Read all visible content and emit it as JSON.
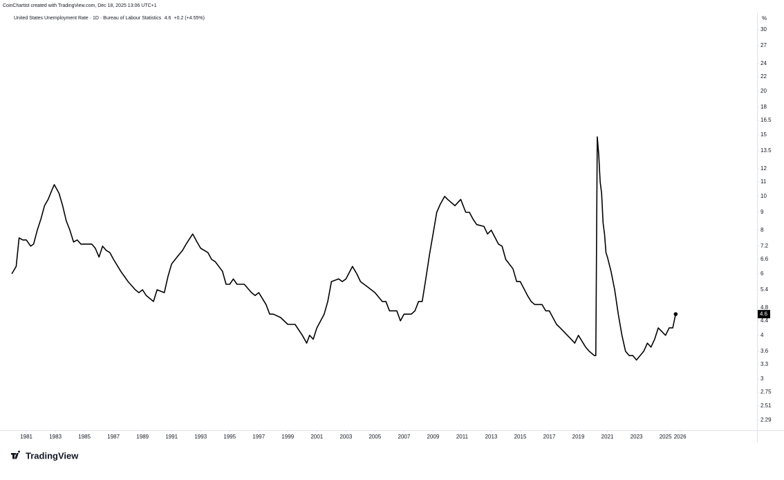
{
  "header": "CoinChartist created with TradingView.com, Dec 18, 2025 13:06 UTC+1",
  "brand": "TradingView",
  "chart_data": {
    "type": "line",
    "y_scale": "log",
    "grid": false,
    "y_unit": "%",
    "change": "+0.2 (+4.55%)",
    "x": [
      1980.0,
      1980.3,
      1980.5,
      1980.75,
      1981.0,
      1981.3,
      1981.5,
      1981.75,
      1982.0,
      1982.25,
      1982.5,
      1982.75,
      1982.92,
      1983.25,
      1983.5,
      1983.75,
      1984.0,
      1984.25,
      1984.5,
      1984.75,
      1985.0,
      1985.5,
      1985.75,
      1986.0,
      1986.25,
      1986.5,
      1986.75,
      1987.0,
      1987.5,
      1987.75,
      1988.0,
      1988.5,
      1988.75,
      1989.0,
      1989.25,
      1989.75,
      1990.0,
      1990.5,
      1990.75,
      1991.0,
      1991.5,
      1991.75,
      1992.0,
      1992.45,
      1992.75,
      1993.0,
      1993.5,
      1993.75,
      1994.0,
      1994.5,
      1994.75,
      1995.0,
      1995.25,
      1995.5,
      1996.0,
      1996.5,
      1996.75,
      1997.0,
      1997.5,
      1997.75,
      1998.0,
      1998.5,
      1999.0,
      1999.5,
      2000.0,
      2000.3,
      2000.5,
      2000.75,
      2001.0,
      2001.5,
      2001.75,
      2002.0,
      2002.5,
      2002.75,
      2003.0,
      2003.45,
      2003.75,
      2004.0,
      2004.5,
      2005.0,
      2005.5,
      2005.75,
      2006.0,
      2006.5,
      2006.75,
      2007.0,
      2007.5,
      2007.75,
      2008.0,
      2008.25,
      2008.5,
      2008.75,
      2009.0,
      2009.25,
      2009.5,
      2009.8,
      2010.0,
      2010.5,
      2010.9,
      2011.25,
      2011.5,
      2011.75,
      2012.0,
      2012.5,
      2012.75,
      2013.0,
      2013.5,
      2013.75,
      2014.0,
      2014.5,
      2014.75,
      2015.0,
      2015.5,
      2015.75,
      2016.0,
      2016.5,
      2016.75,
      2017.0,
      2017.5,
      2017.75,
      2018.0,
      2018.5,
      2018.75,
      2019.0,
      2019.5,
      2019.75,
      2020.1,
      2020.2,
      2020.3,
      2020.4,
      2020.5,
      2020.6,
      2020.7,
      2020.8,
      2020.9,
      2021.0,
      2021.25,
      2021.5,
      2021.75,
      2022.0,
      2022.25,
      2022.5,
      2022.75,
      2023.0,
      2023.25,
      2023.5,
      2023.75,
      2024.0,
      2024.25,
      2024.5,
      2024.75,
      2025.0,
      2025.25,
      2025.5,
      2025.6,
      2025.7
    ],
    "series": [
      {
        "name": "United States Unemployment Rate · 1D · Bureau of Labour Statistics",
        "color": "#000000",
        "values": [
          6.0,
          6.3,
          7.6,
          7.5,
          7.5,
          7.2,
          7.3,
          8.0,
          8.6,
          9.4,
          9.8,
          10.4,
          10.8,
          10.2,
          9.4,
          8.5,
          8.0,
          7.4,
          7.5,
          7.3,
          7.3,
          7.3,
          7.1,
          6.7,
          7.2,
          7.0,
          6.9,
          6.6,
          6.1,
          5.9,
          5.7,
          5.4,
          5.3,
          5.4,
          5.2,
          5.0,
          5.4,
          5.3,
          5.9,
          6.4,
          6.8,
          7.0,
          7.3,
          7.8,
          7.4,
          7.1,
          6.9,
          6.6,
          6.5,
          6.1,
          5.6,
          5.6,
          5.8,
          5.6,
          5.6,
          5.3,
          5.2,
          5.3,
          4.9,
          4.6,
          4.6,
          4.5,
          4.3,
          4.3,
          4.0,
          3.8,
          4.0,
          3.9,
          4.2,
          4.6,
          5.0,
          5.7,
          5.8,
          5.7,
          5.8,
          6.3,
          6.0,
          5.7,
          5.5,
          5.3,
          5.0,
          5.0,
          4.7,
          4.7,
          4.4,
          4.6,
          4.6,
          4.7,
          5.0,
          5.0,
          5.8,
          6.8,
          7.8,
          9.0,
          9.5,
          10.0,
          9.8,
          9.4,
          9.8,
          9.0,
          9.0,
          8.6,
          8.3,
          8.2,
          7.8,
          8.0,
          7.3,
          7.2,
          6.6,
          6.2,
          5.7,
          5.7,
          5.2,
          5.0,
          4.9,
          4.9,
          4.7,
          4.7,
          4.3,
          4.2,
          4.1,
          3.9,
          3.8,
          4.0,
          3.7,
          3.6,
          3.5,
          3.5,
          14.8,
          13.2,
          11.0,
          10.2,
          8.4,
          7.8,
          6.9,
          6.7,
          6.1,
          5.4,
          4.6,
          4.0,
          3.6,
          3.5,
          3.5,
          3.4,
          3.5,
          3.6,
          3.8,
          3.7,
          3.9,
          4.2,
          4.1,
          4.0,
          4.2,
          4.2,
          4.4,
          4.6
        ]
      }
    ],
    "xlim": [
      1979.9,
      2031.3
    ],
    "xticks": [
      1981,
      1983,
      1985,
      1987,
      1989,
      1991,
      1993,
      1995,
      1997,
      1999,
      2001,
      2003,
      2005,
      2007,
      2009,
      2011,
      2013,
      2015,
      2017,
      2019,
      2021,
      2023,
      2025,
      2026
    ],
    "ylim": [
      2.14,
      33
    ],
    "yticks": [
      30,
      27,
      24,
      22,
      20,
      18,
      16.5,
      15,
      13.5,
      12,
      11,
      10,
      9,
      8,
      7.2,
      6.6,
      6,
      5.4,
      4.8,
      4.4,
      4,
      3.6,
      3.3,
      3,
      2.75,
      2.51,
      2.29
    ]
  }
}
